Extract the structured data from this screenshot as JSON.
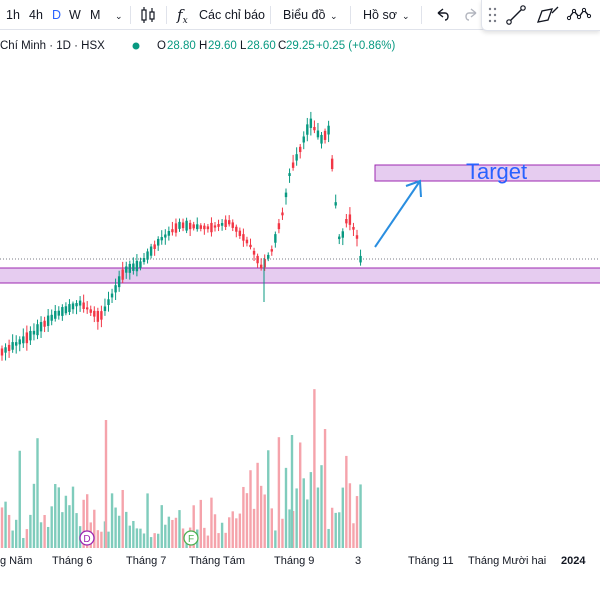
{
  "toolbar": {
    "intervals": [
      "1h",
      "4h",
      "D",
      "W",
      "M"
    ],
    "active_interval": "D",
    "indicators_label": "Các chỉ báo",
    "chart_type_label": "Biểu đồ",
    "profile_label": "Hồ sơ"
  },
  "legend": {
    "symbol": "Chí Minh · 1D · HSX",
    "o_key": "O",
    "o_val": "28.80",
    "h_key": "H",
    "h_val": "29.60",
    "l_key": "L",
    "l_val": "28.60",
    "c_key": "C",
    "c_val": "29.25",
    "change": "+0.25 (+0.86%)"
  },
  "annotation": {
    "target_label": "Target"
  },
  "time_axis": [
    "g Năm",
    "Tháng 6",
    "Tháng 7",
    "Tháng Tám",
    "Tháng 9",
    "3",
    "Tháng 11",
    "Tháng Mười hai",
    "2024"
  ],
  "events": [
    {
      "label": "D",
      "color": "#9c27b0"
    },
    {
      "label": "F",
      "color": "#4caf50"
    }
  ],
  "colors": {
    "up": "#089981",
    "down": "#f23645",
    "vol_up": "#7fccbc",
    "vol_down": "#f5a3ab",
    "zone_fill": "#e6ccf0",
    "zone_border": "#9c27b0",
    "arrow": "#2a8ee0"
  }
}
